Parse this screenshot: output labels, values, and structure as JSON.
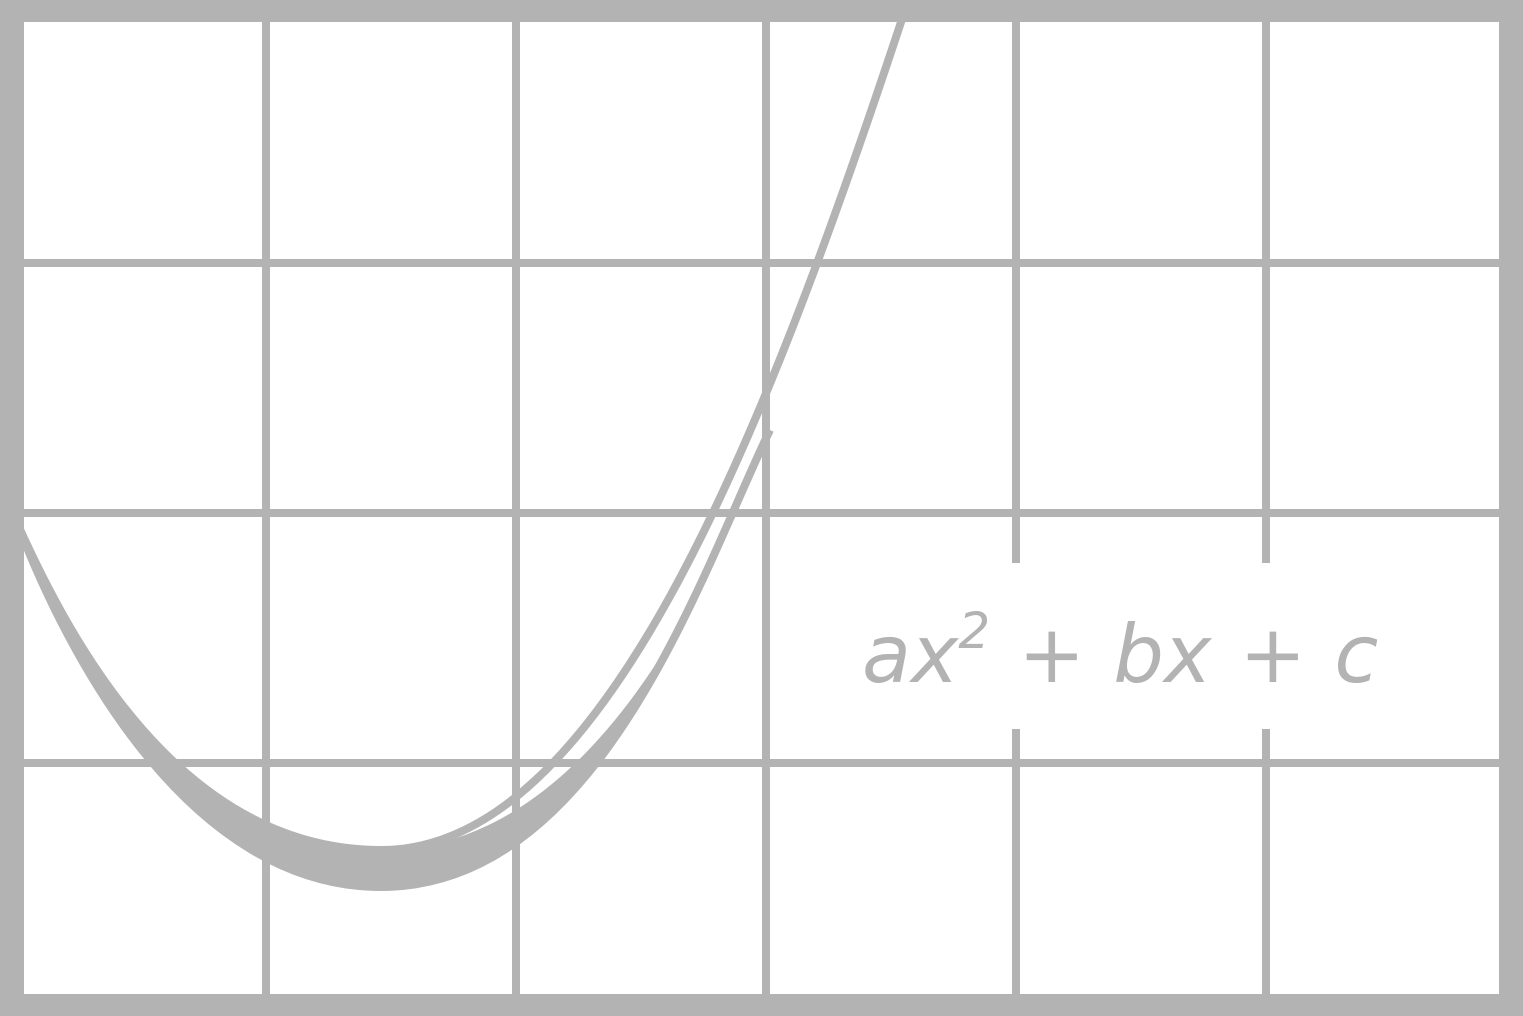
{
  "colors": {
    "background": "#ffffff",
    "line": "#b3b3b3"
  },
  "grid": {
    "columns": 6,
    "rows": 4
  },
  "formula": {
    "a": "a",
    "x": "x",
    "exponent": "2",
    "plus_1": "+",
    "b": "b",
    "x2": "x",
    "plus_2": "+",
    "c": "c"
  }
}
